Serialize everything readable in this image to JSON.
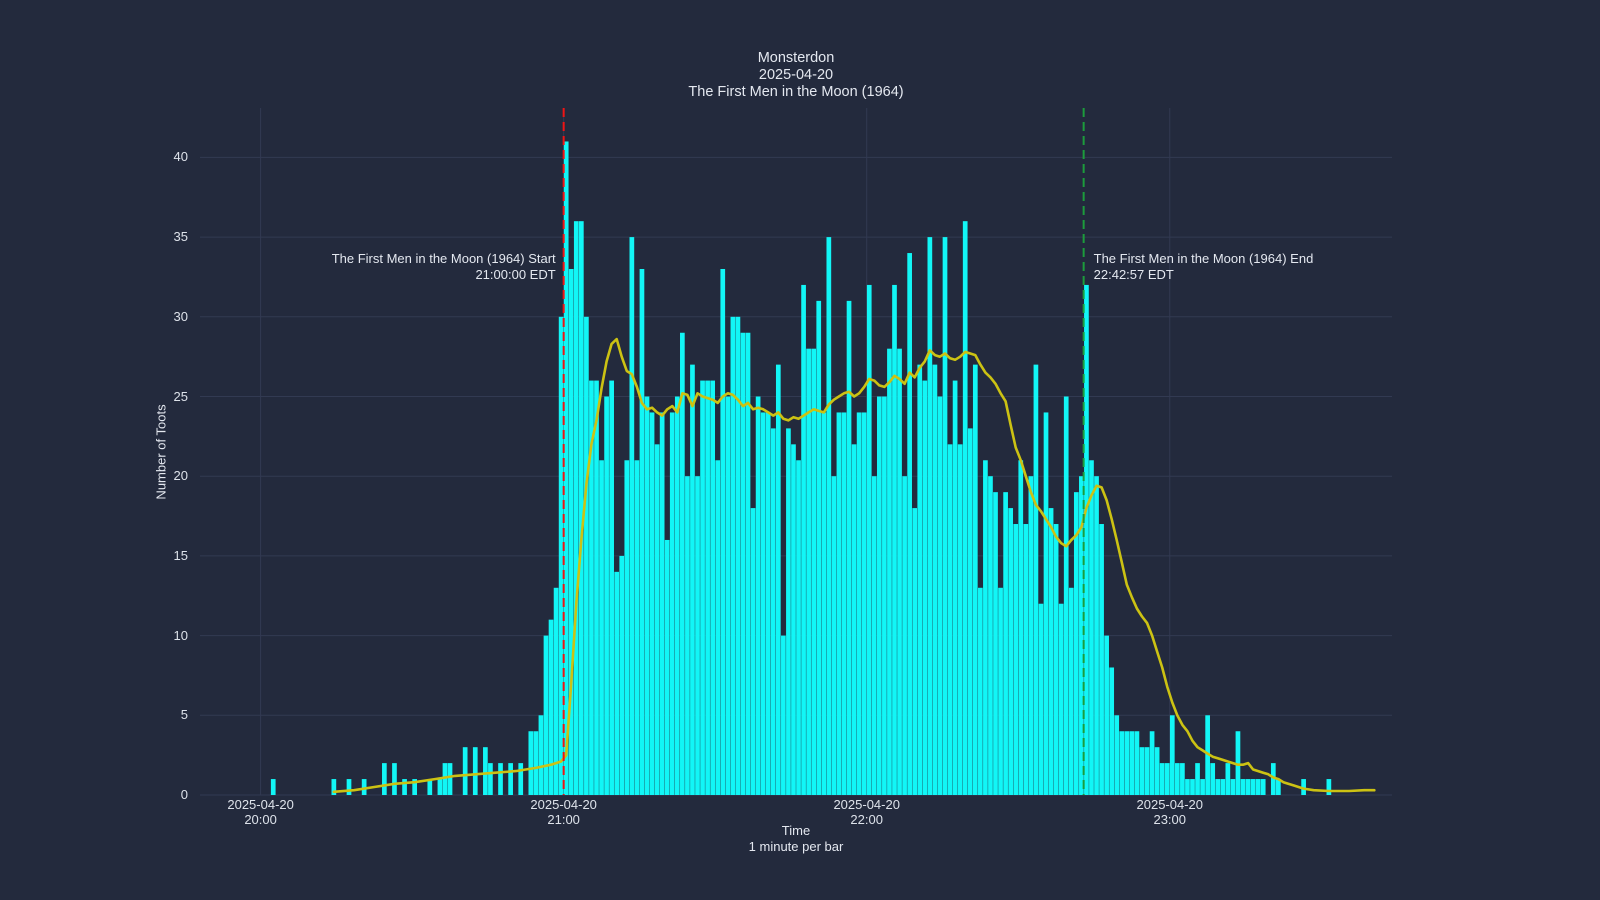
{
  "page": {
    "background": "#232A3D",
    "kind": "timeseries bar chart with smoothed trend line (toots per minute during a movie watch-along)"
  },
  "chart": {
    "title": {
      "line1": "Monsterdon",
      "line2": "2025-04-20",
      "line3": "The First Men in the Moon (1964)"
    },
    "yaxis": {
      "title": "Number of Toots"
    },
    "xaxis": {
      "title_line1": "Time",
      "title_line2": "1 minute per bar"
    },
    "annotations": {
      "start": {
        "line1": "The First Men in the Moon (1964) Start",
        "line2": "21:00:00 EDT"
      },
      "end": {
        "line1": "The First Men in the Moon (1964) End",
        "line2": "22:42:57 EDT"
      }
    }
  },
  "chart_data": {
    "type": "bar",
    "title": "Monsterdon 2025-04-20 The First Men in the Moon (1964)",
    "xlabel": "Time (1 minute per bar)",
    "ylabel": "Number of Toots",
    "date": "2025-04-20",
    "x_range": [
      "19:48",
      "23:44"
    ],
    "ylim": [
      0,
      43.1
    ],
    "grid": true,
    "legend": "none",
    "y_ticks": [
      0,
      5,
      10,
      15,
      20,
      25,
      30,
      35,
      40
    ],
    "x_ticks": [
      {
        "line1": "2025-04-20",
        "line2": "20:00",
        "time": "20:00"
      },
      {
        "line1": "2025-04-20",
        "line2": "21:00",
        "time": "21:00"
      },
      {
        "line1": "2025-04-20",
        "line2": "22:00",
        "time": "22:00"
      },
      {
        "line1": "2025-04-20",
        "line2": "23:00",
        "time": "23:00"
      }
    ],
    "event_lines": [
      {
        "name": "movie-start",
        "time": "21:00:00",
        "label": "The First Men in the Moon (1964) Start",
        "label2": "21:00:00 EDT",
        "color": "#f01414",
        "side": "left"
      },
      {
        "name": "movie-end",
        "time": "22:42:57",
        "label": "The First Men in the Moon (1964) End",
        "label2": "22:42:57 EDT",
        "color": "#1c9c3c",
        "side": "right"
      }
    ],
    "colors": {
      "background": "#232A3D",
      "grid": "#323A52",
      "bar": "#12F6F6",
      "smoothed_line": "#CCC213",
      "start_line": "#F01414",
      "end_line": "#1C9C3C",
      "text": "#E4E8F0",
      "tick_text": "#DDE2EA"
    },
    "bars": [
      [
        "20:02",
        1
      ],
      [
        "20:14",
        1
      ],
      [
        "20:17",
        1
      ],
      [
        "20:20",
        1
      ],
      [
        "20:24",
        2
      ],
      [
        "20:26",
        2
      ],
      [
        "20:28",
        1
      ],
      [
        "20:30",
        1
      ],
      [
        "20:33",
        1
      ],
      [
        "20:35",
        1
      ],
      [
        "20:36",
        2
      ],
      [
        "20:37",
        2
      ],
      [
        "20:40",
        3
      ],
      [
        "20:42",
        3
      ],
      [
        "20:44",
        3
      ],
      [
        "20:45",
        2
      ],
      [
        "20:47",
        2
      ],
      [
        "20:49",
        2
      ],
      [
        "20:51",
        2
      ],
      [
        "20:53",
        4
      ],
      [
        "20:54",
        4
      ],
      [
        "20:55",
        5
      ],
      [
        "20:56",
        10
      ],
      [
        "20:57",
        11
      ],
      [
        "20:58",
        13
      ],
      [
        "20:59",
        30
      ],
      [
        "21:00",
        41
      ],
      [
        "21:01",
        33
      ],
      [
        "21:02",
        36
      ],
      [
        "21:03",
        36
      ],
      [
        "21:04",
        30
      ],
      [
        "21:05",
        26
      ],
      [
        "21:06",
        26
      ],
      [
        "21:07",
        21
      ],
      [
        "21:08",
        25
      ],
      [
        "21:09",
        26
      ],
      [
        "21:10",
        14
      ],
      [
        "21:11",
        15
      ],
      [
        "21:12",
        21
      ],
      [
        "21:13",
        35
      ],
      [
        "21:14",
        21
      ],
      [
        "21:15",
        33
      ],
      [
        "21:16",
        25
      ],
      [
        "21:17",
        24
      ],
      [
        "21:18",
        22
      ],
      [
        "21:19",
        24
      ],
      [
        "21:20",
        16
      ],
      [
        "21:21",
        24
      ],
      [
        "21:22",
        25
      ],
      [
        "21:23",
        29
      ],
      [
        "21:24",
        20
      ],
      [
        "21:25",
        27
      ],
      [
        "21:26",
        20
      ],
      [
        "21:27",
        26
      ],
      [
        "21:28",
        26
      ],
      [
        "21:29",
        26
      ],
      [
        "21:30",
        21
      ],
      [
        "21:31",
        33
      ],
      [
        "21:32",
        25
      ],
      [
        "21:33",
        30
      ],
      [
        "21:34",
        30
      ],
      [
        "21:35",
        29
      ],
      [
        "21:36",
        29
      ],
      [
        "21:37",
        18
      ],
      [
        "21:38",
        25
      ],
      [
        "21:39",
        24
      ],
      [
        "21:40",
        24
      ],
      [
        "21:41",
        23
      ],
      [
        "21:42",
        27
      ],
      [
        "21:43",
        10
      ],
      [
        "21:44",
        23
      ],
      [
        "21:45",
        22
      ],
      [
        "21:46",
        21
      ],
      [
        "21:47",
        32
      ],
      [
        "21:48",
        28
      ],
      [
        "21:49",
        28
      ],
      [
        "21:50",
        31
      ],
      [
        "21:51",
        24
      ],
      [
        "21:52",
        35
      ],
      [
        "21:53",
        20
      ],
      [
        "21:54",
        24
      ],
      [
        "21:55",
        24
      ],
      [
        "21:56",
        31
      ],
      [
        "21:57",
        22
      ],
      [
        "21:58",
        24
      ],
      [
        "21:59",
        24
      ],
      [
        "22:00",
        32
      ],
      [
        "22:01",
        20
      ],
      [
        "22:02",
        25
      ],
      [
        "22:03",
        25
      ],
      [
        "22:04",
        28
      ],
      [
        "22:05",
        32
      ],
      [
        "22:06",
        28
      ],
      [
        "22:07",
        20
      ],
      [
        "22:08",
        34
      ],
      [
        "22:09",
        18
      ],
      [
        "22:10",
        27
      ],
      [
        "22:11",
        26
      ],
      [
        "22:12",
        35
      ],
      [
        "22:13",
        27
      ],
      [
        "22:14",
        25
      ],
      [
        "22:15",
        35
      ],
      [
        "22:16",
        22
      ],
      [
        "22:17",
        26
      ],
      [
        "22:18",
        22
      ],
      [
        "22:19",
        36
      ],
      [
        "22:20",
        23
      ],
      [
        "22:21",
        27
      ],
      [
        "22:22",
        13
      ],
      [
        "22:23",
        21
      ],
      [
        "22:24",
        20
      ],
      [
        "22:25",
        19
      ],
      [
        "22:26",
        13
      ],
      [
        "22:27",
        19
      ],
      [
        "22:28",
        18
      ],
      [
        "22:29",
        17
      ],
      [
        "22:30",
        21
      ],
      [
        "22:31",
        17
      ],
      [
        "22:32",
        20
      ],
      [
        "22:33",
        27
      ],
      [
        "22:34",
        12
      ],
      [
        "22:35",
        24
      ],
      [
        "22:36",
        18
      ],
      [
        "22:37",
        17
      ],
      [
        "22:38",
        12
      ],
      [
        "22:39",
        25
      ],
      [
        "22:40",
        13
      ],
      [
        "22:41",
        19
      ],
      [
        "22:42",
        20
      ],
      [
        "22:43",
        32
      ],
      [
        "22:44",
        21
      ],
      [
        "22:45",
        20
      ],
      [
        "22:46",
        17
      ],
      [
        "22:47",
        10
      ],
      [
        "22:48",
        8
      ],
      [
        "22:49",
        5
      ],
      [
        "22:50",
        4
      ],
      [
        "22:51",
        4
      ],
      [
        "22:52",
        4
      ],
      [
        "22:53",
        4
      ],
      [
        "22:54",
        3
      ],
      [
        "22:55",
        3
      ],
      [
        "22:56",
        4
      ],
      [
        "22:57",
        3
      ],
      [
        "22:58",
        2
      ],
      [
        "22:59",
        2
      ],
      [
        "23:00",
        5
      ],
      [
        "23:01",
        2
      ],
      [
        "23:02",
        2
      ],
      [
        "23:03",
        1
      ],
      [
        "23:04",
        1
      ],
      [
        "23:05",
        2
      ],
      [
        "23:06",
        1
      ],
      [
        "23:07",
        5
      ],
      [
        "23:08",
        2
      ],
      [
        "23:09",
        1
      ],
      [
        "23:10",
        1
      ],
      [
        "23:11",
        2
      ],
      [
        "23:12",
        1
      ],
      [
        "23:13",
        4
      ],
      [
        "23:14",
        1
      ],
      [
        "23:15",
        1
      ],
      [
        "23:16",
        1
      ],
      [
        "23:17",
        1
      ],
      [
        "23:18",
        1
      ],
      [
        "23:20",
        2
      ],
      [
        "23:21",
        1
      ],
      [
        "23:26",
        1
      ],
      [
        "23:31",
        1
      ]
    ],
    "smoothed_line": [
      [
        "20:14",
        0.2
      ],
      [
        "20:18",
        0.3
      ],
      [
        "20:22",
        0.5
      ],
      [
        "20:26",
        0.7
      ],
      [
        "20:30",
        0.8
      ],
      [
        "20:34",
        1.0
      ],
      [
        "20:38",
        1.2
      ],
      [
        "20:42",
        1.3
      ],
      [
        "20:46",
        1.4
      ],
      [
        "20:50",
        1.5
      ],
      [
        "20:54",
        1.7
      ],
      [
        "20:57",
        1.9
      ],
      [
        "20:59",
        2.1
      ],
      [
        "21:00",
        2.5
      ],
      [
        "21:01",
        7
      ],
      [
        "21:02",
        12
      ],
      [
        "21:03",
        16
      ],
      [
        "21:04",
        19.5
      ],
      [
        "21:05",
        22
      ],
      [
        "21:06",
        23.5
      ],
      [
        "21:07",
        25.5
      ],
      [
        "21:08",
        27.2
      ],
      [
        "21:09",
        28.3
      ],
      [
        "21:10",
        28.6
      ],
      [
        "21:11",
        27.5
      ],
      [
        "21:12",
        26.6
      ],
      [
        "21:13",
        26.4
      ],
      [
        "21:14",
        25.6
      ],
      [
        "21:15",
        24.6
      ],
      [
        "21:16",
        24.2
      ],
      [
        "21:17",
        24.3
      ],
      [
        "21:18",
        24.0
      ],
      [
        "21:19",
        23.8
      ],
      [
        "21:20",
        24.2
      ],
      [
        "21:21",
        24.4
      ],
      [
        "21:22",
        24.0
      ],
      [
        "21:23",
        25.2
      ],
      [
        "21:24",
        25.1
      ],
      [
        "21:25",
        24.4
      ],
      [
        "21:26",
        25.2
      ],
      [
        "21:27",
        25.0
      ],
      [
        "21:28",
        24.9
      ],
      [
        "21:29",
        24.8
      ],
      [
        "21:30",
        24.6
      ],
      [
        "21:31",
        25.0
      ],
      [
        "21:32",
        25.2
      ],
      [
        "21:33",
        25.1
      ],
      [
        "21:34",
        24.8
      ],
      [
        "21:35",
        24.4
      ],
      [
        "21:36",
        24.6
      ],
      [
        "21:37",
        24.2
      ],
      [
        "21:38",
        24.3
      ],
      [
        "21:39",
        24.2
      ],
      [
        "21:40",
        24.0
      ],
      [
        "21:41",
        23.8
      ],
      [
        "21:42",
        24.0
      ],
      [
        "21:43",
        23.6
      ],
      [
        "21:44",
        23.5
      ],
      [
        "21:45",
        23.7
      ],
      [
        "21:46",
        23.6
      ],
      [
        "21:47",
        23.8
      ],
      [
        "21:48",
        24.0
      ],
      [
        "21:49",
        24.2
      ],
      [
        "21:50",
        24.1
      ],
      [
        "21:51",
        24.0
      ],
      [
        "21:52",
        24.5
      ],
      [
        "21:53",
        24.8
      ],
      [
        "21:54",
        25.0
      ],
      [
        "21:55",
        25.2
      ],
      [
        "21:56",
        25.3
      ],
      [
        "21:57",
        25.0
      ],
      [
        "21:58",
        25.2
      ],
      [
        "21:59",
        25.6
      ],
      [
        "22:00",
        26.1
      ],
      [
        "22:01",
        26.0
      ],
      [
        "22:02",
        25.7
      ],
      [
        "22:03",
        25.6
      ],
      [
        "22:04",
        25.9
      ],
      [
        "22:05",
        26.3
      ],
      [
        "22:06",
        26.1
      ],
      [
        "22:07",
        25.8
      ],
      [
        "22:08",
        26.5
      ],
      [
        "22:09",
        26.2
      ],
      [
        "22:10",
        26.8
      ],
      [
        "22:11",
        27.2
      ],
      [
        "22:12",
        27.9
      ],
      [
        "22:13",
        27.6
      ],
      [
        "22:14",
        27.5
      ],
      [
        "22:15",
        27.7
      ],
      [
        "22:16",
        27.4
      ],
      [
        "22:17",
        27.3
      ],
      [
        "22:18",
        27.5
      ],
      [
        "22:19",
        27.8
      ],
      [
        "22:20",
        27.7
      ],
      [
        "22:21",
        27.6
      ],
      [
        "22:22",
        27.0
      ],
      [
        "22:23",
        26.5
      ],
      [
        "22:24",
        26.2
      ],
      [
        "22:25",
        25.8
      ],
      [
        "22:26",
        25.2
      ],
      [
        "22:27",
        24.7
      ],
      [
        "22:28",
        23.2
      ],
      [
        "22:29",
        21.8
      ],
      [
        "22:30",
        21.0
      ],
      [
        "22:31",
        20.0
      ],
      [
        "22:32",
        19.0
      ],
      [
        "22:33",
        18.2
      ],
      [
        "22:34",
        17.8
      ],
      [
        "22:35",
        17.3
      ],
      [
        "22:36",
        16.8
      ],
      [
        "22:37",
        16.2
      ],
      [
        "22:38",
        15.8
      ],
      [
        "22:39",
        15.6
      ],
      [
        "22:40",
        16.0
      ],
      [
        "22:41",
        16.3
      ],
      [
        "22:42",
        16.8
      ],
      [
        "22:43",
        18.0
      ],
      [
        "22:44",
        18.8
      ],
      [
        "22:45",
        19.4
      ],
      [
        "22:46",
        19.3
      ],
      [
        "22:47",
        18.5
      ],
      [
        "22:48",
        17.3
      ],
      [
        "22:49",
        16.0
      ],
      [
        "22:50",
        14.6
      ],
      [
        "22:51",
        13.2
      ],
      [
        "22:52",
        12.4
      ],
      [
        "22:53",
        11.7
      ],
      [
        "22:54",
        11.2
      ],
      [
        "22:55",
        10.8
      ],
      [
        "22:56",
        10.0
      ],
      [
        "22:57",
        9.0
      ],
      [
        "22:58",
        8.0
      ],
      [
        "22:59",
        6.8
      ],
      [
        "23:00",
        5.8
      ],
      [
        "23:01",
        5.0
      ],
      [
        "23:02",
        4.4
      ],
      [
        "23:03",
        4.0
      ],
      [
        "23:04",
        3.4
      ],
      [
        "23:05",
        3.0
      ],
      [
        "23:06",
        2.8
      ],
      [
        "23:07",
        2.6
      ],
      [
        "23:08",
        2.4
      ],
      [
        "23:09",
        2.3
      ],
      [
        "23:10",
        2.2
      ],
      [
        "23:11",
        2.1
      ],
      [
        "23:12",
        2.0
      ],
      [
        "23:13",
        1.9
      ],
      [
        "23:14",
        1.9
      ],
      [
        "23:15",
        2.0
      ],
      [
        "23:16",
        1.6
      ],
      [
        "23:17",
        1.5
      ],
      [
        "23:18",
        1.4
      ],
      [
        "23:19",
        1.3
      ],
      [
        "23:20",
        1.1
      ],
      [
        "23:21",
        1.0
      ],
      [
        "23:22",
        0.8
      ],
      [
        "23:24",
        0.6
      ],
      [
        "23:26",
        0.4
      ],
      [
        "23:28",
        0.3
      ],
      [
        "23:31",
        0.25
      ],
      [
        "23:35",
        0.25
      ],
      [
        "23:38",
        0.3
      ],
      [
        "23:40",
        0.3
      ]
    ]
  }
}
